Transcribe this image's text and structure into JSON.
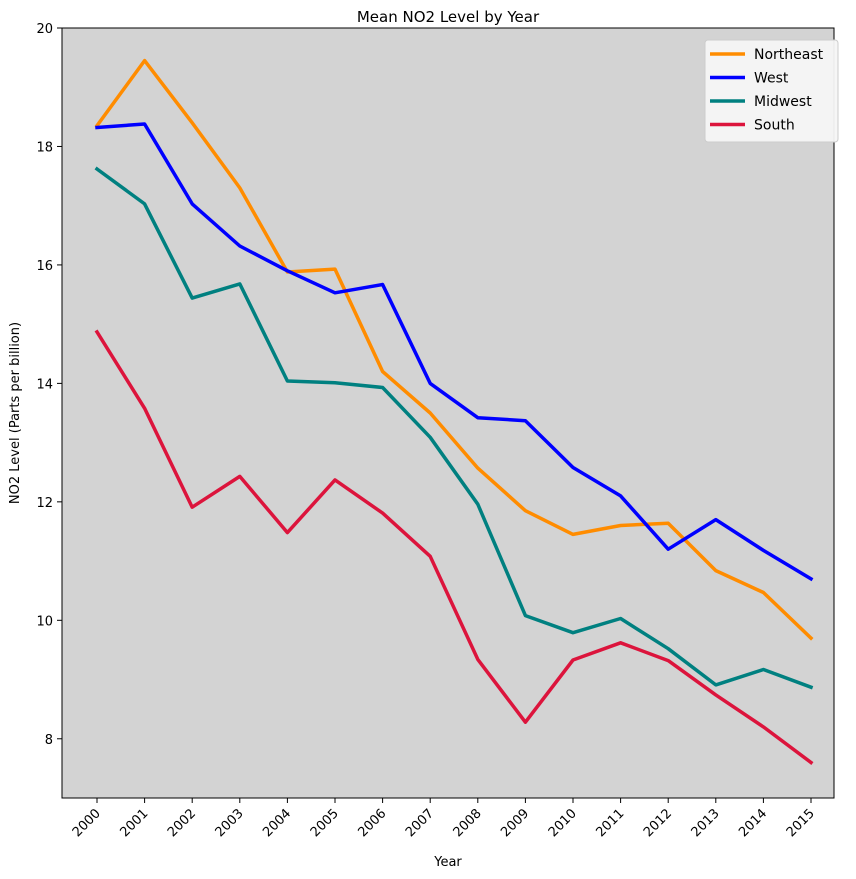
{
  "chart_data": {
    "type": "line",
    "title": "Mean NO2 Level by Year",
    "xlabel": "Year",
    "ylabel": "NO2 Level (Parts per billion)",
    "ylim": [
      7.0,
      20.0
    ],
    "yticks": [
      8,
      10,
      12,
      14,
      16,
      18,
      20
    ],
    "background": "#d3d3d3",
    "legend_position": "top-right",
    "categories": [
      "2000",
      "2001",
      "2002",
      "2003",
      "2004",
      "2005",
      "2006",
      "2007",
      "2008",
      "2009",
      "2010",
      "2011",
      "2012",
      "2013",
      "2014",
      "2015"
    ],
    "series": [
      {
        "name": "Northeast",
        "color": "#ff8c00",
        "values": [
          18.35,
          19.45,
          18.4,
          17.3,
          15.88,
          15.93,
          14.2,
          13.5,
          12.57,
          11.85,
          11.45,
          11.6,
          11.64,
          10.84,
          10.47,
          9.7
        ]
      },
      {
        "name": "West",
        "color": "#0000ff",
        "values": [
          18.32,
          18.38,
          17.03,
          16.32,
          15.9,
          15.53,
          15.67,
          14.0,
          13.42,
          13.37,
          12.58,
          12.1,
          11.2,
          11.7,
          11.18,
          10.7
        ]
      },
      {
        "name": "Midwest",
        "color": "#008080",
        "values": [
          17.62,
          17.03,
          15.44,
          15.68,
          14.04,
          14.01,
          13.93,
          13.09,
          11.96,
          10.08,
          9.79,
          10.03,
          9.52,
          8.91,
          9.17,
          8.87
        ]
      },
      {
        "name": "South",
        "color": "#dc143c",
        "values": [
          14.87,
          13.58,
          11.91,
          12.43,
          11.48,
          12.37,
          11.81,
          11.08,
          9.34,
          8.28,
          9.33,
          9.62,
          9.32,
          8.74,
          8.2,
          7.6
        ]
      }
    ]
  }
}
